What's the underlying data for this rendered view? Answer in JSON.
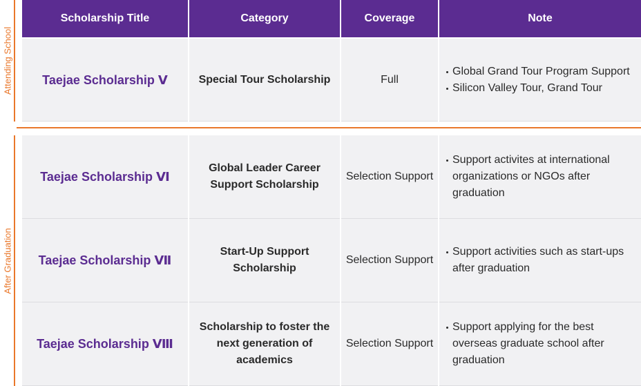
{
  "headers": {
    "title": "Scholarship Title",
    "category": "Category",
    "coverage": "Coverage",
    "note": "Note"
  },
  "groups": {
    "attending": "Attending School",
    "after": "After Graduation"
  },
  "rows": [
    {
      "title": "Taejae Scholarship Ⅴ",
      "category": "Special Tour Scholarship",
      "coverage": "Full",
      "notes": [
        "Global Grand Tour Program Support",
        "Silicon Valley Tour, Grand Tour"
      ]
    },
    {
      "title": "Taejae Scholarship Ⅵ",
      "category": "Global Leader Career Support Scholarship",
      "coverage": "Selection Support",
      "notes": [
        "Support activites at international organizations or NGOs after graduation"
      ]
    },
    {
      "title": "Taejae Scholarship Ⅶ",
      "category": "Start-Up Support Scholarship",
      "coverage": "Selection Support",
      "notes": [
        "Support activities such as start-ups after graduation"
      ]
    },
    {
      "title": "Taejae Scholarship Ⅷ",
      "category": "Scholarship to foster the next generation of academics",
      "coverage": "Selection Support",
      "notes": [
        "Support applying for the best overseas graduate school after graduation"
      ]
    }
  ]
}
